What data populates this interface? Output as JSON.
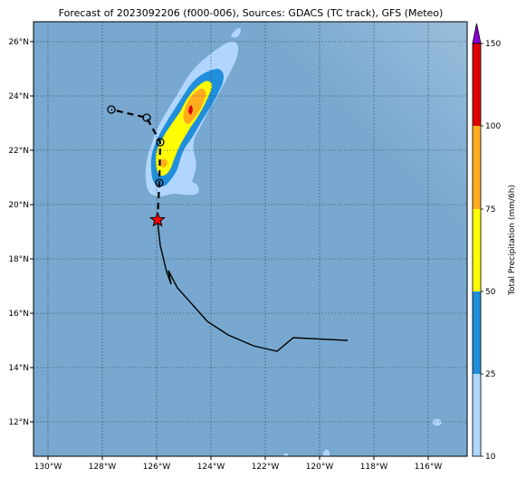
{
  "title": "Forecast of 2023092206 (f000-006), Sources: GDACS (TC track), GFS (Meteo)",
  "map": {
    "ocean_color": "#78a8cf",
    "grid": true,
    "lon_ticks": [
      "130°W",
      "128°W",
      "126°W",
      "124°W",
      "122°W",
      "120°W",
      "118°W",
      "116°W"
    ],
    "lat_ticks": [
      "26°N",
      "24°N",
      "22°N",
      "20°N",
      "18°N",
      "16°N",
      "14°N",
      "12°N"
    ]
  },
  "colorbar": {
    "label": "Total Precipitation (mm/6h)",
    "tick_labels": [
      "10",
      "25",
      "50",
      "75",
      "100",
      "150"
    ],
    "colors": [
      "#b0d6ff",
      "#1f8fdc",
      "#ffff00",
      "#ffad1f",
      "#e00000",
      "#8a00d4"
    ]
  },
  "track": {
    "observed_color": "#000000",
    "forecast_color": "#000000",
    "current_marker_color": "#ff0000"
  }
}
